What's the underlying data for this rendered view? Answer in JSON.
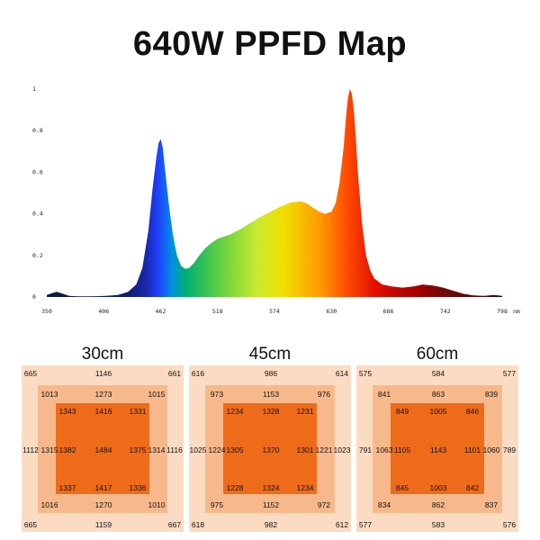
{
  "title": "640W PPFD Map",
  "chart_data": [
    {
      "type": "area",
      "title": "",
      "xlabel": "",
      "ylabel": "",
      "x_unit": "nm",
      "xlim": [
        350,
        798
      ],
      "ylim": [
        0,
        1
      ],
      "x_ticks": [
        "350",
        "406",
        "462",
        "518",
        "574",
        "630",
        "686",
        "742",
        "798"
      ],
      "y_ticks": [
        "0",
        "0.2",
        "0.4",
        "0.6",
        "0.8",
        "1"
      ],
      "series": [
        {
          "x": [
            350,
            356,
            360,
            366,
            372,
            380,
            390,
            400,
            410,
            420,
            430,
            438,
            444,
            450,
            454,
            458,
            460,
            462,
            464,
            466,
            470,
            474,
            478,
            482,
            486,
            490,
            495,
            500,
            506,
            512,
            518,
            524,
            530,
            540,
            550,
            560,
            570,
            580,
            590,
            600,
            606,
            612,
            618,
            624,
            630,
            634,
            638,
            642,
            644,
            646,
            648,
            650,
            652,
            654,
            656,
            660,
            664,
            668,
            672,
            680,
            690,
            700,
            710,
            720,
            730,
            740,
            750,
            760,
            770,
            780,
            790,
            798
          ],
          "values": [
            0.01,
            0.02,
            0.025,
            0.015,
            0.005,
            0.003,
            0.003,
            0.004,
            0.006,
            0.01,
            0.025,
            0.06,
            0.14,
            0.32,
            0.52,
            0.68,
            0.74,
            0.76,
            0.72,
            0.63,
            0.45,
            0.3,
            0.2,
            0.15,
            0.135,
            0.14,
            0.165,
            0.2,
            0.235,
            0.26,
            0.28,
            0.29,
            0.3,
            0.325,
            0.355,
            0.385,
            0.41,
            0.435,
            0.455,
            0.46,
            0.45,
            0.43,
            0.41,
            0.4,
            0.41,
            0.45,
            0.55,
            0.72,
            0.85,
            0.95,
            1.0,
            0.98,
            0.9,
            0.76,
            0.6,
            0.36,
            0.2,
            0.13,
            0.09,
            0.06,
            0.05,
            0.045,
            0.05,
            0.06,
            0.055,
            0.045,
            0.03,
            0.015,
            0.008,
            0.005,
            0.01,
            0.005
          ]
        }
      ]
    },
    {
      "type": "heatmap",
      "title": "30cm",
      "points": [
        {
          "label": "665",
          "x": 0,
          "y": 0
        },
        {
          "label": "1146",
          "x": 2,
          "y": 0
        },
        {
          "label": "661",
          "x": 4,
          "y": 0
        },
        {
          "label": "1013",
          "x": 1,
          "y": 1
        },
        {
          "label": "1273",
          "x": 2,
          "y": 1
        },
        {
          "label": "1015",
          "x": 3,
          "y": 1
        },
        {
          "label": "1343",
          "x": 1.5,
          "y": 1.5
        },
        {
          "label": "1416",
          "x": 2,
          "y": 1.5
        },
        {
          "label": "1331",
          "x": 2.5,
          "y": 1.5
        },
        {
          "label": "1112",
          "x": 0,
          "y": 2
        },
        {
          "label": "1315",
          "x": 1,
          "y": 2
        },
        {
          "label": "1382",
          "x": 1.5,
          "y": 2
        },
        {
          "label": "1484",
          "x": 2,
          "y": 2
        },
        {
          "label": "1375",
          "x": 2.5,
          "y": 2
        },
        {
          "label": "1314",
          "x": 3,
          "y": 2
        },
        {
          "label": "1116",
          "x": 4,
          "y": 2
        },
        {
          "label": "1337",
          "x": 1.5,
          "y": 2.5
        },
        {
          "label": "1417",
          "x": 2,
          "y": 2.5
        },
        {
          "label": "1336",
          "x": 2.5,
          "y": 2.5
        },
        {
          "label": "1016",
          "x": 1,
          "y": 3
        },
        {
          "label": "1270",
          "x": 2,
          "y": 3
        },
        {
          "label": "1010",
          "x": 3,
          "y": 3
        },
        {
          "label": "665",
          "x": 0,
          "y": 4
        },
        {
          "label": "1159",
          "x": 2,
          "y": 4
        },
        {
          "label": "667",
          "x": 4,
          "y": 4
        }
      ]
    },
    {
      "type": "heatmap",
      "title": "45cm",
      "points": [
        {
          "label": "616",
          "x": 0,
          "y": 0
        },
        {
          "label": "986",
          "x": 2,
          "y": 0
        },
        {
          "label": "614",
          "x": 4,
          "y": 0
        },
        {
          "label": "973",
          "x": 1,
          "y": 1
        },
        {
          "label": "1153",
          "x": 2,
          "y": 1
        },
        {
          "label": "976",
          "x": 3,
          "y": 1
        },
        {
          "label": "1234",
          "x": 1.5,
          "y": 1.5
        },
        {
          "label": "1328",
          "x": 2,
          "y": 1.5
        },
        {
          "label": "1231",
          "x": 2.5,
          "y": 1.5
        },
        {
          "label": "1025",
          "x": 0,
          "y": 2
        },
        {
          "label": "1224",
          "x": 1,
          "y": 2
        },
        {
          "label": "1305",
          "x": 1.5,
          "y": 2
        },
        {
          "label": "1370",
          "x": 2,
          "y": 2
        },
        {
          "label": "1301",
          "x": 2.5,
          "y": 2
        },
        {
          "label": "1221",
          "x": 3,
          "y": 2
        },
        {
          "label": "1023",
          "x": 4,
          "y": 2
        },
        {
          "label": "1228",
          "x": 1.5,
          "y": 2.5
        },
        {
          "label": "1324",
          "x": 2,
          "y": 2.5
        },
        {
          "label": "1234",
          "x": 2.5,
          "y": 2.5
        },
        {
          "label": "975",
          "x": 1,
          "y": 3
        },
        {
          "label": "1152",
          "x": 2,
          "y": 3
        },
        {
          "label": "972",
          "x": 3,
          "y": 3
        },
        {
          "label": "618",
          "x": 0,
          "y": 4
        },
        {
          "label": "982",
          "x": 2,
          "y": 4
        },
        {
          "label": "612",
          "x": 4,
          "y": 4
        }
      ]
    },
    {
      "type": "heatmap",
      "title": "60cm",
      "points": [
        {
          "label": "575",
          "x": 0,
          "y": 0
        },
        {
          "label": "584",
          "x": 2,
          "y": 0
        },
        {
          "label": "577",
          "x": 4,
          "y": 0
        },
        {
          "label": "841",
          "x": 1,
          "y": 1
        },
        {
          "label": "863",
          "x": 2,
          "y": 1
        },
        {
          "label": "839",
          "x": 3,
          "y": 1
        },
        {
          "label": "849",
          "x": 1.5,
          "y": 1.5
        },
        {
          "label": "1005",
          "x": 2,
          "y": 1.5
        },
        {
          "label": "846",
          "x": 2.5,
          "y": 1.5
        },
        {
          "label": "791",
          "x": 0,
          "y": 2
        },
        {
          "label": "1063",
          "x": 1,
          "y": 2
        },
        {
          "label": "1105",
          "x": 1.5,
          "y": 2
        },
        {
          "label": "1143",
          "x": 2,
          "y": 2
        },
        {
          "label": "1101",
          "x": 2.5,
          "y": 2
        },
        {
          "label": "1060",
          "x": 3,
          "y": 2
        },
        {
          "label": "789",
          "x": 4,
          "y": 2
        },
        {
          "label": "845",
          "x": 1.5,
          "y": 2.5
        },
        {
          "label": "1003",
          "x": 2,
          "y": 2.5
        },
        {
          "label": "842",
          "x": 2.5,
          "y": 2.5
        },
        {
          "label": "834",
          "x": 1,
          "y": 3
        },
        {
          "label": "862",
          "x": 2,
          "y": 3
        },
        {
          "label": "837",
          "x": 3,
          "y": 3
        },
        {
          "label": "577",
          "x": 0,
          "y": 4
        },
        {
          "label": "583",
          "x": 2,
          "y": 4
        },
        {
          "label": "576",
          "x": 4,
          "y": 4
        }
      ]
    }
  ],
  "colors": {
    "ring_outer": "#fbdcc3",
    "ring_mid": "#f7b98c",
    "ring_inner": "#ee6b1a",
    "spectrum_stops": [
      "#0a1a40",
      "#1a2a8a",
      "#2040ff",
      "#00a0e0",
      "#20c060",
      "#90e040",
      "#f0e000",
      "#ff9000",
      "#ff3000",
      "#c00000",
      "#4a0a0a"
    ]
  }
}
